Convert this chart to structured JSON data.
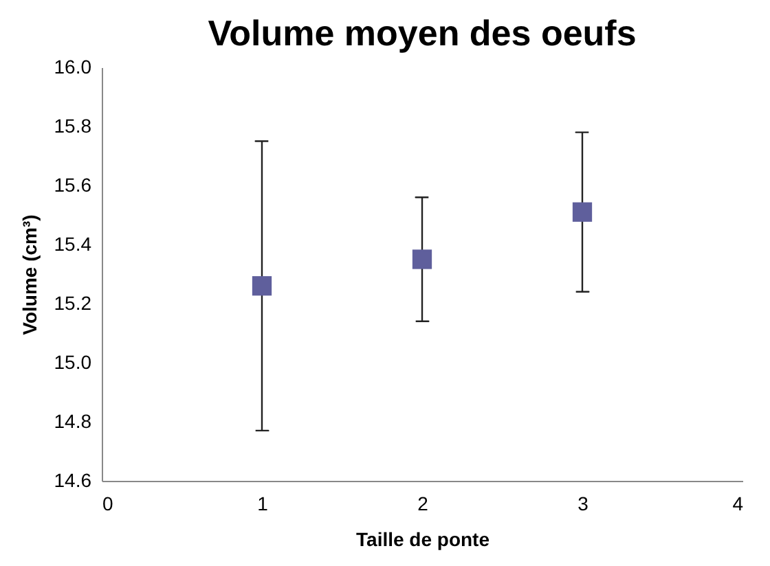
{
  "chart_data": {
    "type": "scatter",
    "title": "Volume moyen des oeufs",
    "xlabel": "Taille de ponte",
    "ylabel": "Volume (cm³)",
    "x": [
      1,
      2,
      3
    ],
    "series": [
      {
        "color": "#5f5f9c",
        "values": [
          15.26,
          15.35,
          15.51
        ],
        "errors": [
          0.49,
          0.21,
          0.27
        ]
      }
    ],
    "xlim": [
      0,
      4
    ],
    "xticks": [
      0,
      1,
      2,
      3,
      4
    ],
    "ylim": [
      14.6,
      16.0
    ],
    "yticks": [
      14.6,
      14.8,
      {
        "value": 15,
        "label": "15.0"
      },
      15.2,
      15.4,
      15.6,
      15.8,
      {
        "value": 16,
        "label": "16.0"
      }
    ],
    "grid": false,
    "legend": false,
    "marker": "square"
  }
}
